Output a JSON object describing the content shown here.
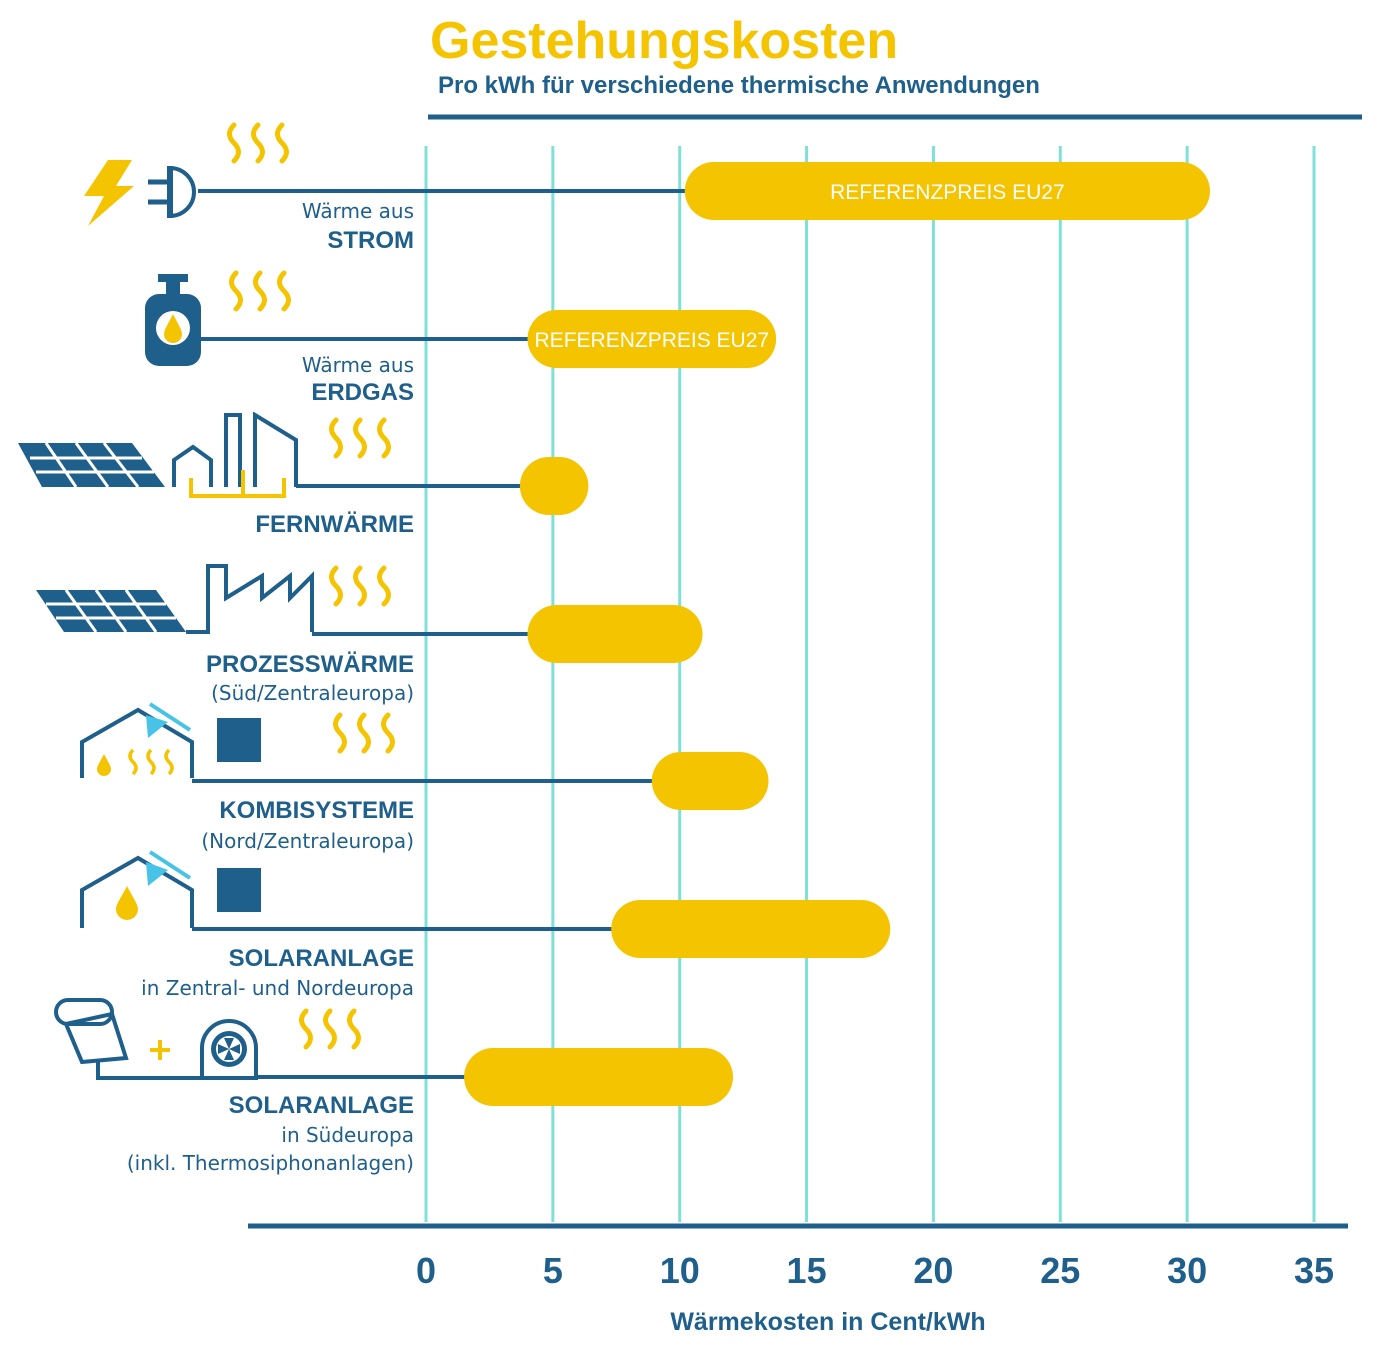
{
  "colors": {
    "accent": "#f5c400",
    "dark": "#1f5f8b",
    "grid": "#7fe0d8",
    "light_blue": "#46c3e6"
  },
  "chart_data": {
    "type": "bar",
    "orientation": "horizontal",
    "title": "Gestehungskosten",
    "subtitle": "Pro kWh für verschiedene thermische Anwendungen",
    "xlabel": "Wärmekosten in Cent/kWh",
    "xlim": [
      0,
      35
    ],
    "xticks": [
      "0",
      "5",
      "10",
      "15",
      "20",
      "25",
      "30",
      "35"
    ],
    "grid": "vertical",
    "categories": [
      {
        "line1": "Wärme aus",
        "line2": "STROM",
        "line3": "",
        "min": 10.2,
        "max": 30.9,
        "bar_text": "REFERENZPREIS EU27",
        "icons": [
          "lightning-icon",
          "plug-icon",
          "heat-waves-icon"
        ]
      },
      {
        "line1": "Wärme aus",
        "line2": "ERDGAS",
        "line3": "",
        "min": 4.0,
        "max": 13.8,
        "bar_text": "REFERENZPREIS EU27",
        "icons": [
          "gas-bottle-icon",
          "heat-waves-icon"
        ]
      },
      {
        "line1": "",
        "line2": "FERNWÄRME",
        "line3": "",
        "min": 3.7,
        "max": 6.4,
        "bar_text": "",
        "icons": [
          "solar-panel-icon",
          "district-heating-plant-icon",
          "heat-waves-icon"
        ]
      },
      {
        "line1": "",
        "line2": "PROZESSWÄRME",
        "line3": "(Süd/Zentraleuropa)",
        "min": 4.0,
        "max": 10.9,
        "bar_text": "",
        "icons": [
          "solar-panel-icon",
          "factory-icon",
          "heat-waves-icon"
        ]
      },
      {
        "line1": "",
        "line2": "KOMBISYSTEME",
        "line3": "(Nord/Zentraleuropa)",
        "min": 8.9,
        "max": 13.5,
        "bar_text": "",
        "icons": [
          "house-solar-icon",
          "storage-tank-icon",
          "heat-waves-icon"
        ]
      },
      {
        "line1": "",
        "line2": "SOLARANLAGE",
        "line3": "in Zentral- und Nordeuropa",
        "min": 7.3,
        "max": 18.3,
        "bar_text": "",
        "icons": [
          "house-solar-icon",
          "storage-tank-icon"
        ]
      },
      {
        "line1": "",
        "line2": "SOLARANLAGE",
        "line3": "in Südeuropa",
        "line4": "(inkl. Thermosiphonanlagen)",
        "min": 1.5,
        "max": 12.1,
        "bar_text": "",
        "icons": [
          "thermosiphon-collector-icon",
          "plus-icon",
          "heat-pump-icon",
          "heat-waves-icon"
        ]
      }
    ]
  }
}
